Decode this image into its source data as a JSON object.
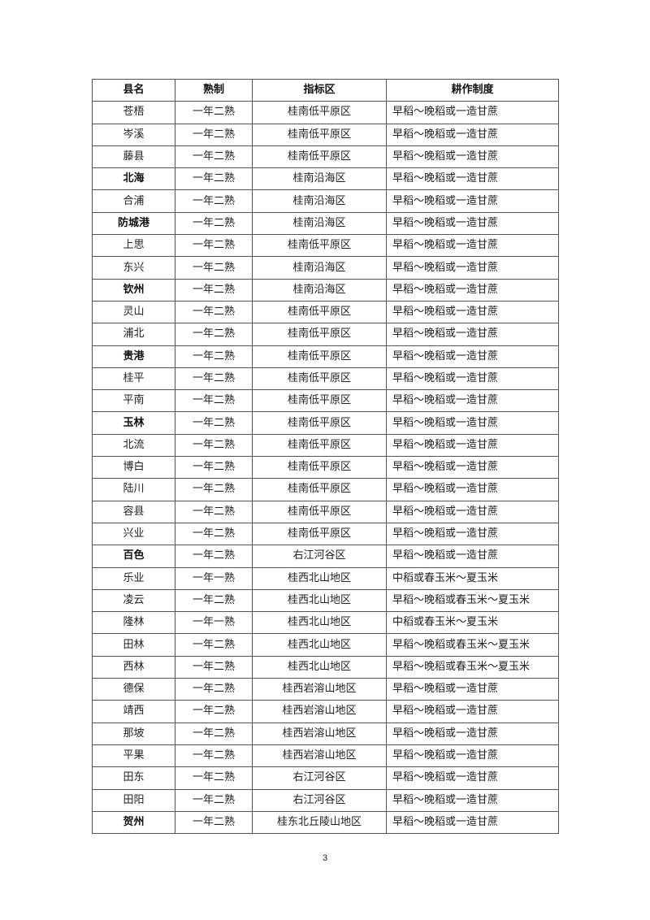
{
  "table": {
    "headers": [
      "县名",
      "熟制",
      "指标区",
      "耕作制度"
    ],
    "rows": [
      {
        "county": "苍梧",
        "maturity": "一年二熟",
        "zone": "桂南低平原区",
        "system": "早稻～晚稻或一造甘蔗",
        "bold": false
      },
      {
        "county": "岑溪",
        "maturity": "一年二熟",
        "zone": "桂南低平原区",
        "system": "早稻～晚稻或一造甘蔗",
        "bold": false
      },
      {
        "county": "藤县",
        "maturity": "一年二熟",
        "zone": "桂南低平原区",
        "system": "早稻～晚稻或一造甘蔗",
        "bold": false
      },
      {
        "county": "北海",
        "maturity": "一年二熟",
        "zone": "桂南沿海区",
        "system": "早稻～晚稻或一造甘蔗",
        "bold": true
      },
      {
        "county": "合浦",
        "maturity": "一年二熟",
        "zone": "桂南沿海区",
        "system": "早稻～晚稻或一造甘蔗",
        "bold": false
      },
      {
        "county": "防城港",
        "maturity": "一年二熟",
        "zone": "桂南沿海区",
        "system": "早稻～晚稻或一造甘蔗",
        "bold": true
      },
      {
        "county": "上思",
        "maturity": "一年二熟",
        "zone": "桂南低平原区",
        "system": "早稻～晚稻或一造甘蔗",
        "bold": false
      },
      {
        "county": "东兴",
        "maturity": "一年二熟",
        "zone": "桂南沿海区",
        "system": "早稻～晚稻或一造甘蔗",
        "bold": false
      },
      {
        "county": "钦州",
        "maturity": "一年二熟",
        "zone": "桂南沿海区",
        "system": "早稻～晚稻或一造甘蔗",
        "bold": true
      },
      {
        "county": "灵山",
        "maturity": "一年二熟",
        "zone": "桂南低平原区",
        "system": "早稻～晚稻或一造甘蔗",
        "bold": false
      },
      {
        "county": "浦北",
        "maturity": "一年二熟",
        "zone": "桂南低平原区",
        "system": "早稻～晚稻或一造甘蔗",
        "bold": false
      },
      {
        "county": "贵港",
        "maturity": "一年二熟",
        "zone": "桂南低平原区",
        "system": "早稻～晚稻或一造甘蔗",
        "bold": true
      },
      {
        "county": "桂平",
        "maturity": "一年二熟",
        "zone": "桂南低平原区",
        "system": "早稻～晚稻或一造甘蔗",
        "bold": false
      },
      {
        "county": "平南",
        "maturity": "一年二熟",
        "zone": "桂南低平原区",
        "system": "早稻～晚稻或一造甘蔗",
        "bold": false
      },
      {
        "county": "玉林",
        "maturity": "一年二熟",
        "zone": "桂南低平原区",
        "system": "早稻～晚稻或一造甘蔗",
        "bold": true
      },
      {
        "county": "北流",
        "maturity": "一年二熟",
        "zone": "桂南低平原区",
        "system": "早稻～晚稻或一造甘蔗",
        "bold": false
      },
      {
        "county": "博白",
        "maturity": "一年二熟",
        "zone": "桂南低平原区",
        "system": "早稻～晚稻或一造甘蔗",
        "bold": false
      },
      {
        "county": "陆川",
        "maturity": "一年二熟",
        "zone": "桂南低平原区",
        "system": "早稻～晚稻或一造甘蔗",
        "bold": false
      },
      {
        "county": "容县",
        "maturity": "一年二熟",
        "zone": "桂南低平原区",
        "system": "早稻～晚稻或一造甘蔗",
        "bold": false
      },
      {
        "county": "兴业",
        "maturity": "一年二熟",
        "zone": "桂南低平原区",
        "system": "早稻～晚稻或一造甘蔗",
        "bold": false
      },
      {
        "county": "百色",
        "maturity": "一年二熟",
        "zone": "右江河谷区",
        "system": "早稻～晚稻或一造甘蔗",
        "bold": true
      },
      {
        "county": "乐业",
        "maturity": "一年一熟",
        "zone": "桂西北山地区",
        "system": "中稻或春玉米～夏玉米",
        "bold": false
      },
      {
        "county": "凌云",
        "maturity": "一年二熟",
        "zone": "桂西北山地区",
        "system": "早稻～晚稻或春玉米～夏玉米",
        "bold": false
      },
      {
        "county": "隆林",
        "maturity": "一年一熟",
        "zone": "桂西北山地区",
        "system": "中稻或春玉米～夏玉米",
        "bold": false
      },
      {
        "county": "田林",
        "maturity": "一年二熟",
        "zone": "桂西北山地区",
        "system": "早稻～晚稻或春玉米～夏玉米",
        "bold": false
      },
      {
        "county": "西林",
        "maturity": "一年二熟",
        "zone": "桂西北山地区",
        "system": "早稻～晚稻或春玉米～夏玉米",
        "bold": false
      },
      {
        "county": "德保",
        "maturity": "一年二熟",
        "zone": "桂西岩溶山地区",
        "system": "早稻～晚稻或一造甘蔗",
        "bold": false
      },
      {
        "county": "靖西",
        "maturity": "一年二熟",
        "zone": "桂西岩溶山地区",
        "system": "早稻～晚稻或一造甘蔗",
        "bold": false
      },
      {
        "county": "那坡",
        "maturity": "一年二熟",
        "zone": "桂西岩溶山地区",
        "system": "早稻～晚稻或一造甘蔗",
        "bold": false
      },
      {
        "county": "平果",
        "maturity": "一年二熟",
        "zone": "桂西岩溶山地区",
        "system": "早稻～晚稻或一造甘蔗",
        "bold": false
      },
      {
        "county": "田东",
        "maturity": "一年二熟",
        "zone": "右江河谷区",
        "system": "早稻～晚稻或一造甘蔗",
        "bold": false
      },
      {
        "county": "田阳",
        "maturity": "一年二熟",
        "zone": "右江河谷区",
        "system": "早稻～晚稻或一造甘蔗",
        "bold": false
      },
      {
        "county": "贺州",
        "maturity": "一年二熟",
        "zone": "桂东北丘陵山地区",
        "system": "早稻～晚稻或一造甘蔗",
        "bold": true
      }
    ]
  },
  "page_number": "3"
}
